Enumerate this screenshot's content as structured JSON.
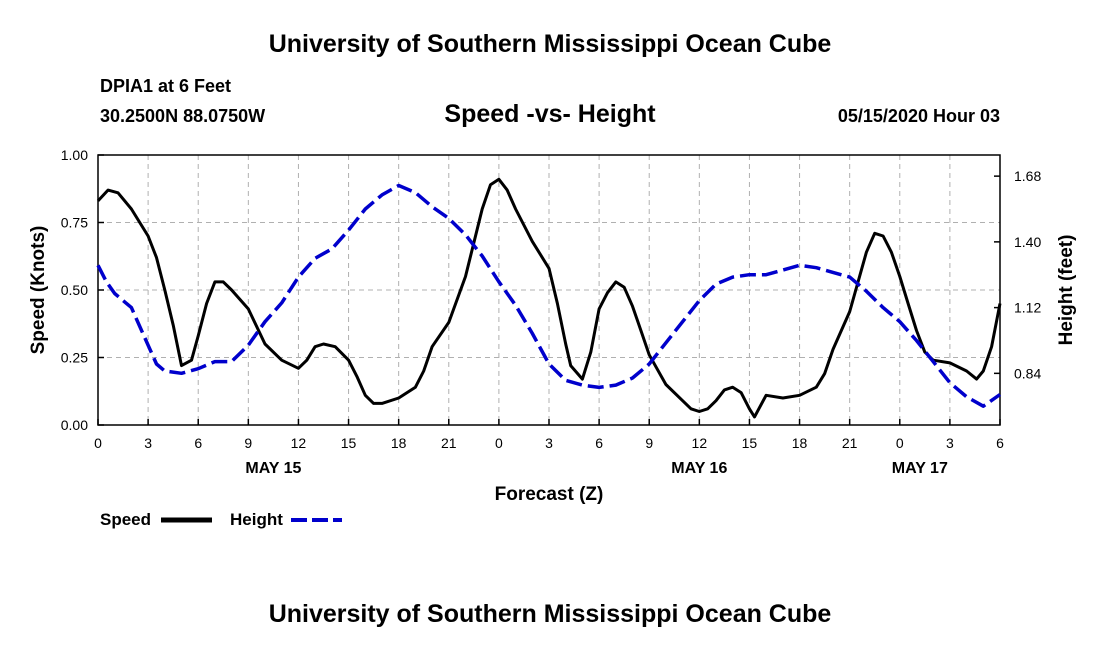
{
  "header": {
    "title": "University of Southern Mississippi Ocean Cube",
    "station": "DPIA1 at 6 Feet",
    "coordinates": "30.2500N 88.0750W",
    "subtitle": "Speed -vs- Height",
    "datetime": "05/15/2020 Hour 03"
  },
  "footer": {
    "title": "University of Southern Mississippi Ocean Cube"
  },
  "colors": {
    "speed": "#000000",
    "height": "#0000cc",
    "grid": "#b0b0b0"
  },
  "chart_data": {
    "type": "line",
    "title": "Speed -vs- Height",
    "xlabel": "Forecast (Z)",
    "ylabel_left": "Speed (Knots)",
    "ylabel_right": "Height (feet)",
    "x_range_hours": [
      0,
      54
    ],
    "ylim_left": [
      0,
      1.0
    ],
    "ylim_right": [
      0.62,
      1.77
    ],
    "x_ticks": [
      {
        "h": 0,
        "label": "0"
      },
      {
        "h": 3,
        "label": "3"
      },
      {
        "h": 6,
        "label": "6"
      },
      {
        "h": 9,
        "label": "9"
      },
      {
        "h": 12,
        "label": "12"
      },
      {
        "h": 15,
        "label": "15"
      },
      {
        "h": 18,
        "label": "18"
      },
      {
        "h": 21,
        "label": "21"
      },
      {
        "h": 24,
        "label": "0"
      },
      {
        "h": 27,
        "label": "3"
      },
      {
        "h": 30,
        "label": "6"
      },
      {
        "h": 33,
        "label": "9"
      },
      {
        "h": 36,
        "label": "12"
      },
      {
        "h": 39,
        "label": "15"
      },
      {
        "h": 42,
        "label": "18"
      },
      {
        "h": 45,
        "label": "21"
      },
      {
        "h": 48,
        "label": "0"
      },
      {
        "h": 51,
        "label": "3"
      },
      {
        "h": 54,
        "label": "6"
      }
    ],
    "date_labels": [
      {
        "h": 10.5,
        "label": "MAY 15"
      },
      {
        "h": 36,
        "label": "MAY 16"
      },
      {
        "h": 49.2,
        "label": "MAY 17"
      }
    ],
    "left_ticks": [
      {
        "v": 0,
        "label": "0.00"
      },
      {
        "v": 0.25,
        "label": "0.25"
      },
      {
        "v": 0.5,
        "label": "0.50"
      },
      {
        "v": 0.75,
        "label": "0.75"
      },
      {
        "v": 1.0,
        "label": "1.00"
      }
    ],
    "right_ticks": [
      {
        "v": 0.84,
        "label": "0.84"
      },
      {
        "v": 1.12,
        "label": "1.12"
      },
      {
        "v": 1.4,
        "label": "1.40"
      },
      {
        "v": 1.68,
        "label": "1.68"
      }
    ],
    "legend": {
      "placement": "bottom-left",
      "speed_label": "Speed",
      "height_label": "Height"
    },
    "series": [
      {
        "name": "Speed",
        "axis": "left",
        "style": "solid",
        "points": [
          [
            0,
            0.83
          ],
          [
            0.6,
            0.87
          ],
          [
            1.2,
            0.86
          ],
          [
            2,
            0.8
          ],
          [
            3,
            0.7
          ],
          [
            3.5,
            0.62
          ],
          [
            4,
            0.5
          ],
          [
            4.5,
            0.37
          ],
          [
            5,
            0.22
          ],
          [
            5.6,
            0.24
          ],
          [
            6,
            0.33
          ],
          [
            6.5,
            0.45
          ],
          [
            7,
            0.53
          ],
          [
            7.5,
            0.53
          ],
          [
            8,
            0.5
          ],
          [
            9,
            0.43
          ],
          [
            10,
            0.3
          ],
          [
            11,
            0.24
          ],
          [
            12,
            0.21
          ],
          [
            12.5,
            0.24
          ],
          [
            13,
            0.29
          ],
          [
            13.5,
            0.3
          ],
          [
            14.2,
            0.29
          ],
          [
            15,
            0.24
          ],
          [
            15.5,
            0.18
          ],
          [
            16,
            0.11
          ],
          [
            16.5,
            0.08
          ],
          [
            17,
            0.08
          ],
          [
            18,
            0.1
          ],
          [
            19,
            0.14
          ],
          [
            19.5,
            0.2
          ],
          [
            20,
            0.29
          ],
          [
            21,
            0.38
          ],
          [
            22,
            0.55
          ],
          [
            23,
            0.8
          ],
          [
            23.5,
            0.89
          ],
          [
            24,
            0.91
          ],
          [
            24.5,
            0.87
          ],
          [
            25,
            0.8
          ],
          [
            26,
            0.68
          ],
          [
            27,
            0.58
          ],
          [
            27.5,
            0.45
          ],
          [
            28,
            0.3
          ],
          [
            28.3,
            0.22
          ],
          [
            29,
            0.17
          ],
          [
            29.5,
            0.27
          ],
          [
            30,
            0.43
          ],
          [
            30.5,
            0.49
          ],
          [
            31,
            0.53
          ],
          [
            31.5,
            0.51
          ],
          [
            32,
            0.44
          ],
          [
            32.5,
            0.35
          ],
          [
            33,
            0.26
          ],
          [
            34,
            0.15
          ],
          [
            35,
            0.09
          ],
          [
            35.5,
            0.06
          ],
          [
            36,
            0.05
          ],
          [
            36.5,
            0.06
          ],
          [
            37,
            0.09
          ],
          [
            37.5,
            0.13
          ],
          [
            38,
            0.14
          ],
          [
            38.5,
            0.12
          ],
          [
            39,
            0.06
          ],
          [
            39.3,
            0.03
          ],
          [
            40,
            0.11
          ],
          [
            41,
            0.1
          ],
          [
            42,
            0.11
          ],
          [
            43,
            0.14
          ],
          [
            43.5,
            0.19
          ],
          [
            44,
            0.28
          ],
          [
            45,
            0.42
          ],
          [
            46,
            0.64
          ],
          [
            46.5,
            0.71
          ],
          [
            47,
            0.7
          ],
          [
            47.5,
            0.64
          ],
          [
            48,
            0.55
          ],
          [
            48.5,
            0.45
          ],
          [
            49,
            0.35
          ],
          [
            49.5,
            0.27
          ],
          [
            50,
            0.24
          ],
          [
            51,
            0.23
          ],
          [
            52,
            0.2
          ],
          [
            52.6,
            0.17
          ],
          [
            53,
            0.2
          ],
          [
            53.5,
            0.29
          ],
          [
            54,
            0.45
          ]
        ]
      },
      {
        "name": "Height",
        "axis": "right",
        "style": "dashed",
        "points": [
          [
            0,
            1.3
          ],
          [
            0.5,
            1.23
          ],
          [
            1,
            1.18
          ],
          [
            2,
            1.12
          ],
          [
            3,
            0.96
          ],
          [
            3.5,
            0.88
          ],
          [
            4,
            0.85
          ],
          [
            5,
            0.84
          ],
          [
            6,
            0.86
          ],
          [
            7,
            0.89
          ],
          [
            8,
            0.89
          ],
          [
            9,
            0.96
          ],
          [
            10,
            1.06
          ],
          [
            11,
            1.14
          ],
          [
            12,
            1.25
          ],
          [
            13,
            1.33
          ],
          [
            14,
            1.37
          ],
          [
            15,
            1.45
          ],
          [
            16,
            1.54
          ],
          [
            17,
            1.6
          ],
          [
            18,
            1.64
          ],
          [
            19,
            1.61
          ],
          [
            20,
            1.55
          ],
          [
            21,
            1.5
          ],
          [
            22,
            1.43
          ],
          [
            23,
            1.34
          ],
          [
            24,
            1.23
          ],
          [
            25,
            1.13
          ],
          [
            26,
            1.01
          ],
          [
            27,
            0.88
          ],
          [
            28,
            0.81
          ],
          [
            29,
            0.79
          ],
          [
            30,
            0.78
          ],
          [
            31,
            0.79
          ],
          [
            32,
            0.82
          ],
          [
            33,
            0.88
          ],
          [
            34,
            0.97
          ],
          [
            35,
            1.06
          ],
          [
            36,
            1.15
          ],
          [
            37,
            1.22
          ],
          [
            38,
            1.25
          ],
          [
            39,
            1.26
          ],
          [
            40,
            1.26
          ],
          [
            41,
            1.28
          ],
          [
            42,
            1.3
          ],
          [
            43,
            1.29
          ],
          [
            44,
            1.27
          ],
          [
            45,
            1.25
          ],
          [
            46,
            1.19
          ],
          [
            47,
            1.12
          ],
          [
            48,
            1.06
          ],
          [
            49,
            0.98
          ],
          [
            50,
            0.89
          ],
          [
            51,
            0.8
          ],
          [
            52,
            0.74
          ],
          [
            53,
            0.7
          ],
          [
            54,
            0.75
          ]
        ]
      }
    ]
  }
}
